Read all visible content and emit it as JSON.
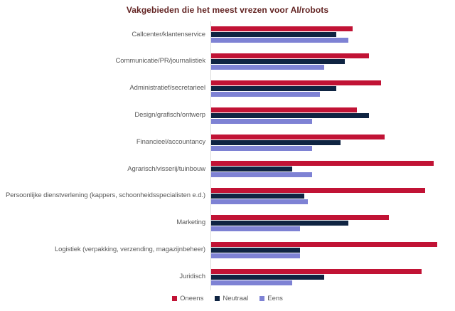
{
  "title": "Vakgebieden die het meest vrezen voor AI/robots",
  "colors": {
    "oneens": "#c11335",
    "neutraal": "#0f2442",
    "eens": "#7e82d4",
    "title_text": "#632423",
    "label_text": "#595959",
    "axis_line": "#d9d9d9"
  },
  "chart_data": {
    "type": "bar",
    "orientation": "horizontal",
    "title": "Vakgebieden die het meest vrezen voor AI/robots",
    "xlabel": "",
    "ylabel": "",
    "unit": "percent",
    "xlim": [
      0,
      60
    ],
    "grid": false,
    "legend_position": "bottom",
    "categories": [
      "Callcenter/klantenservice",
      "Communicatie/PR/journalistiek",
      "Administratief/secretarieel",
      "Design/grafisch/ontwerp",
      "Financieel/accountancy",
      "Agrarisch/visserij/tuinbouw",
      "Persoonlijke dienstverlening (kappers, schoonheidsspecialisten e.d.)",
      "Marketing",
      "Logistiek (verpakking, verzending, magazijnbeheer)",
      "Juridisch"
    ],
    "series": [
      {
        "name": "Oneens",
        "color": "#c11335",
        "values": [
          35,
          39,
          42,
          36,
          43,
          55,
          53,
          44,
          56,
          52
        ]
      },
      {
        "name": "Neutraal",
        "color": "#0f2442",
        "values": [
          31,
          33,
          31,
          39,
          32,
          20,
          23,
          34,
          22,
          28
        ]
      },
      {
        "name": "Eens",
        "color": "#7e82d4",
        "values": [
          34,
          28,
          27,
          25,
          25,
          25,
          24,
          22,
          22,
          20
        ]
      }
    ]
  }
}
